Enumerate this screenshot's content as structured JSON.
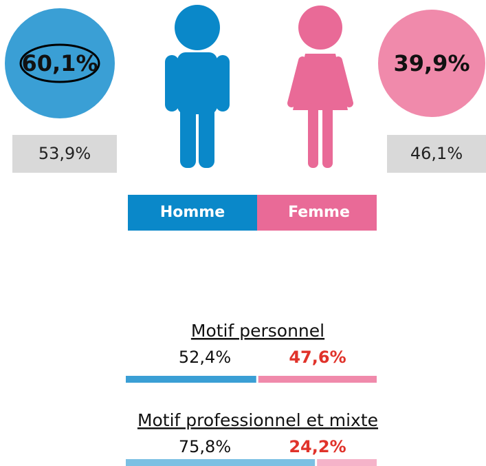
{
  "circles": {
    "left": "60,1%",
    "right": "39,9%"
  },
  "boxes": {
    "left": "53,9%",
    "right": "46,1%"
  },
  "legend": [
    "Homme",
    "Femme"
  ],
  "motifs": [
    {
      "title": "Motif personnel",
      "values": [
        52.4,
        47.6
      ],
      "value_labels": [
        "52,4%",
        "47,6%"
      ]
    },
    {
      "title": "Motif professionnel et mixte",
      "values": [
        75.8,
        24.2
      ],
      "value_labels": [
        "75,8%",
        "24,2%"
      ]
    }
  ]
}
